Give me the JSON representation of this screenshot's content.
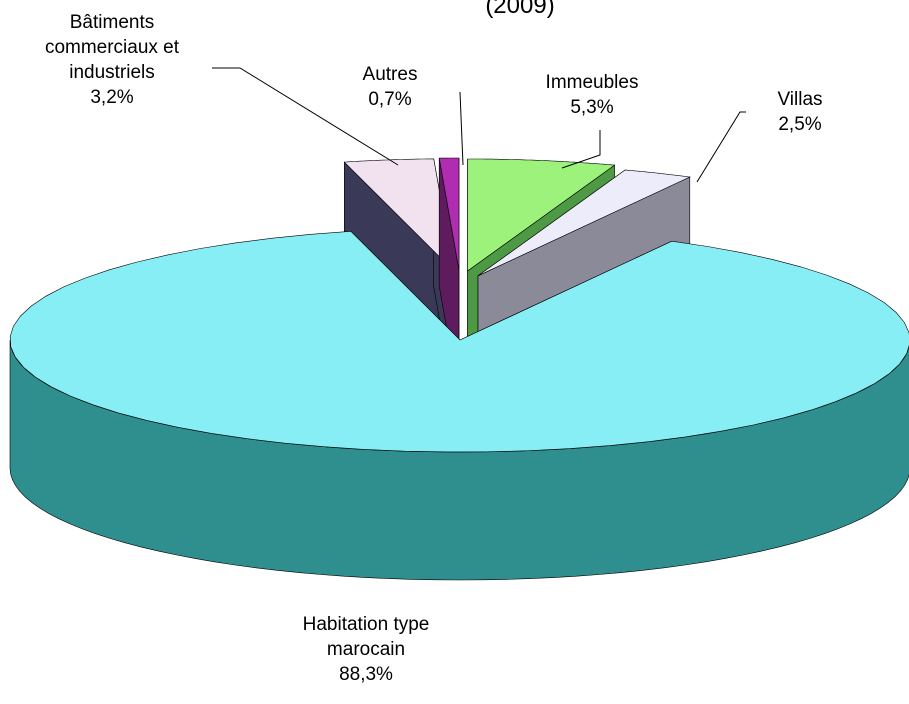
{
  "chart_data": {
    "type": "pie3d",
    "title": "(2009)",
    "categories": [
      "Immeubles",
      "Villas",
      "Habitation type marocain",
      "Bâtiments commerciaux et industriels",
      "Autres"
    ],
    "values": [
      5.3,
      2.5,
      88.3,
      3.2,
      0.7
    ],
    "value_labels": [
      "5,3%",
      "2,5%",
      "88,3%",
      "3,2%",
      "0,7%"
    ],
    "colors": [
      "#9cf27a",
      "#ececfa",
      "#86eef4",
      "#f2e2f0",
      "#b02cb0"
    ],
    "side_colors": [
      "#4e9a44",
      "#8a8a98",
      "#2f8e8e",
      "#3a3a58",
      "#5e1c5e"
    ]
  }
}
